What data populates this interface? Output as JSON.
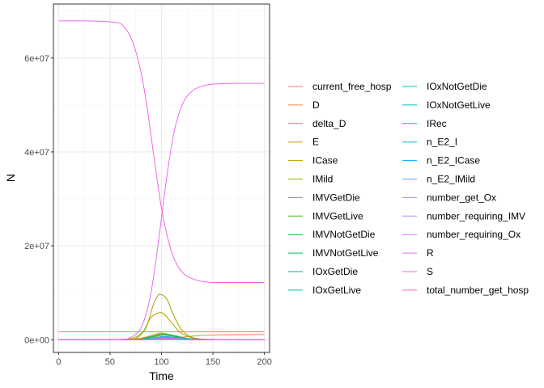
{
  "chart_data": {
    "type": "line",
    "xlabel": "Time",
    "ylabel": "N",
    "xlim": [
      -5,
      205
    ],
    "ylim": [
      -2700000,
      71500000
    ],
    "x_ticks": [
      0,
      50,
      100,
      150,
      200
    ],
    "x_tick_labels": [
      "0",
      "50",
      "100",
      "150",
      "200"
    ],
    "y_ticks": [
      0,
      20000000,
      40000000,
      60000000
    ],
    "y_tick_labels": [
      "0e+00",
      "2e+07",
      "4e+07",
      "6e+07"
    ],
    "grid": true,
    "legend_position": "right",
    "legend_columns": 2,
    "series": [
      {
        "name": "current_free_hosp",
        "color": "#F8766D",
        "x": [
          0,
          80,
          200
        ],
        "y": [
          1700000,
          1700000,
          1700000
        ]
      },
      {
        "name": "D",
        "color": "#EE8044",
        "x": [
          0,
          80,
          100,
          120,
          140,
          160,
          200
        ],
        "y": [
          0,
          0,
          150000,
          550000,
          950000,
          1050000,
          1100000
        ]
      },
      {
        "name": "delta_D",
        "color": "#E08B00",
        "x": [
          0,
          70,
          90,
          100,
          110,
          130,
          200
        ],
        "y": [
          0,
          0,
          3000,
          6000,
          4000,
          500,
          0
        ]
      },
      {
        "name": "E",
        "color": "#CD9600",
        "x": [
          0,
          60,
          80,
          90,
          100,
          110,
          120,
          140,
          200
        ],
        "y": [
          0,
          0,
          350000,
          900000,
          1400000,
          900000,
          350000,
          40000,
          0
        ]
      },
      {
        "name": "ICase",
        "color": "#B89F00",
        "x": [
          0,
          60,
          80,
          90,
          100,
          110,
          120,
          140,
          200
        ],
        "y": [
          0,
          0,
          1300000,
          4800000,
          5800000,
          3600000,
          1300000,
          150000,
          0
        ]
      },
      {
        "name": "IMild",
        "color": "#9FA600",
        "x": [
          0,
          60,
          75,
          85,
          92,
          98,
          105,
          112,
          120,
          130,
          145,
          200
        ],
        "y": [
          0,
          0,
          300000,
          2600000,
          7400000,
          9700000,
          8700000,
          5100000,
          2000000,
          500000,
          50000,
          0
        ]
      },
      {
        "name": "IMVGetDie",
        "color": "#7FAE00",
        "x": [
          0,
          70,
          90,
          102,
          115,
          135,
          200
        ],
        "y": [
          0,
          0,
          700000,
          1300000,
          800000,
          100000,
          0
        ]
      },
      {
        "name": "IMVGetLive",
        "color": "#4CB500",
        "x": [
          0,
          70,
          90,
          102,
          115,
          135,
          200
        ],
        "y": [
          0,
          0,
          500000,
          1000000,
          600000,
          80000,
          0
        ]
      },
      {
        "name": "IMVNotGetDie",
        "color": "#00BA38",
        "x": [
          0,
          70,
          90,
          102,
          115,
          135,
          200
        ],
        "y": [
          0,
          0,
          200000,
          500000,
          300000,
          50000,
          0
        ]
      },
      {
        "name": "IMVNotGetLive",
        "color": "#00BD5C",
        "x": [
          0,
          70,
          90,
          102,
          115,
          135,
          200
        ],
        "y": [
          0,
          0,
          50000,
          120000,
          80000,
          20000,
          0
        ]
      },
      {
        "name": "IOxGetDie",
        "color": "#00C07B",
        "x": [
          0,
          70,
          90,
          102,
          115,
          135,
          200
        ],
        "y": [
          0,
          0,
          300000,
          600000,
          400000,
          60000,
          0
        ]
      },
      {
        "name": "IOxGetLive",
        "color": "#00C097",
        "x": [
          0,
          70,
          90,
          102,
          115,
          135,
          200
        ],
        "y": [
          0,
          0,
          600000,
          1100000,
          700000,
          100000,
          0
        ]
      },
      {
        "name": "IOxNotGetDie",
        "color": "#00BFB1",
        "x": [
          0,
          70,
          90,
          102,
          115,
          135,
          200
        ],
        "y": [
          0,
          0,
          150000,
          350000,
          250000,
          40000,
          0
        ]
      },
      {
        "name": "IOxNotGetLive",
        "color": "#00BBC9",
        "x": [
          0,
          70,
          90,
          102,
          115,
          135,
          200
        ],
        "y": [
          0,
          0,
          100000,
          250000,
          150000,
          30000,
          0
        ]
      },
      {
        "name": "IRec",
        "color": "#00B6DE",
        "x": [
          0,
          70,
          90,
          102,
          115,
          135,
          200
        ],
        "y": [
          0,
          0,
          300000,
          700000,
          450000,
          80000,
          0
        ]
      },
      {
        "name": "n_E2_I",
        "color": "#00AEF0",
        "x": [
          0,
          70,
          90,
          102,
          115,
          135,
          200
        ],
        "y": [
          0,
          0,
          250000,
          600000,
          350000,
          60000,
          0
        ]
      },
      {
        "name": "n_E2_ICase",
        "color": "#00A5FF",
        "x": [
          0,
          70,
          90,
          102,
          115,
          135,
          200
        ],
        "y": [
          0,
          0,
          100000,
          220000,
          150000,
          30000,
          0
        ]
      },
      {
        "name": "n_E2_IMild",
        "color": "#619CFF",
        "x": [
          0,
          70,
          90,
          102,
          115,
          135,
          200
        ],
        "y": [
          0,
          0,
          200000,
          500000,
          300000,
          50000,
          0
        ]
      },
      {
        "name": "number_get_Ox",
        "color": "#9590FF",
        "x": [
          0,
          70,
          90,
          102,
          115,
          135,
          200
        ],
        "y": [
          0,
          0,
          80000,
          180000,
          120000,
          20000,
          0
        ]
      },
      {
        "name": "number_requiring_IMV",
        "color": "#B983FF",
        "x": [
          0,
          70,
          90,
          102,
          115,
          135,
          200
        ],
        "y": [
          0,
          0,
          60000,
          150000,
          100000,
          15000,
          0
        ]
      },
      {
        "name": "number_requiring_Ox",
        "color": "#D575FE",
        "x": [
          0,
          70,
          90,
          102,
          115,
          135,
          200
        ],
        "y": [
          0,
          0,
          40000,
          100000,
          70000,
          10000,
          0
        ]
      },
      {
        "name": "R",
        "color": "#E76BF3",
        "x": [
          0,
          30,
          60,
          70,
          80,
          88,
          94,
          100,
          106,
          112,
          120,
          130,
          145,
          170,
          200
        ],
        "y": [
          0,
          0,
          100000,
          500000,
          2500000,
          8000000,
          16000000,
          26000000,
          36000000,
          44000000,
          50000000,
          53000000,
          54300000,
          54600000,
          54600000
        ]
      },
      {
        "name": "S",
        "color": "#F365E6",
        "x": [
          0,
          30,
          55,
          62,
          70,
          78,
          85,
          92,
          100,
          108,
          115,
          122,
          130,
          140,
          150,
          170,
          200
        ],
        "y": [
          67900000,
          67900000,
          67600000,
          67000000,
          64500000,
          59000000,
          51000000,
          40000000,
          28000000,
          20000000,
          16000000,
          14000000,
          13000000,
          12400000,
          12200000,
          12200000,
          12200000
        ]
      },
      {
        "name": "total_number_get_hosp",
        "color": "#FC61D5",
        "x": [
          0,
          70,
          90,
          102,
          115,
          135,
          200
        ],
        "y": [
          0,
          0,
          120000,
          300000,
          200000,
          40000,
          0
        ]
      }
    ]
  }
}
